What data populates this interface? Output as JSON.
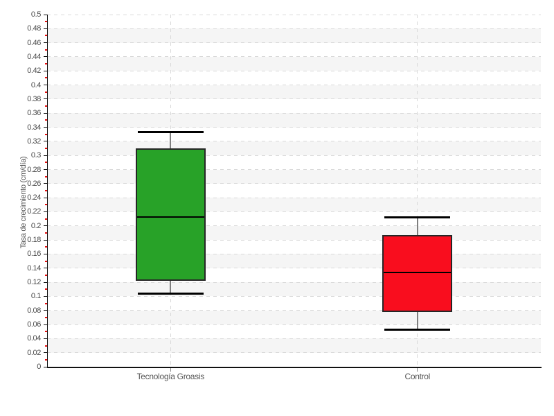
{
  "chart_data": {
    "type": "boxplot",
    "title": "",
    "xlabel": "",
    "ylabel": "Tasa de crecimiento (cm/día)",
    "ylim": [
      0,
      0.5
    ],
    "ytick_labels": [
      "0",
      "0.02",
      "0.04",
      "0.06",
      "0.08",
      "0.1",
      "0.12",
      "0.14",
      "0.16",
      "0.18",
      "0.2",
      "0.22",
      "0.24",
      "0.26",
      "0.28",
      "0.3",
      "0.32",
      "0.34",
      "0.36",
      "0.38",
      "0.4",
      "0.42",
      "0.44",
      "0.46",
      "0.48",
      "0.5"
    ],
    "minor_ticks_every": 0.01,
    "legend": "none",
    "grid": {
      "horizontal_gridlines": "dashed at every 0.02",
      "vertical_gridlines": "dashed at each category center",
      "alternating_row_bands": true
    },
    "categories": [
      "Tecnología Groasis",
      "Control"
    ],
    "series": [
      {
        "name": "Tecnología Groasis",
        "fill_color": "#28a228",
        "whisker_low": 0.104,
        "q1": 0.122,
        "median": 0.213,
        "q3": 0.31,
        "whisker_high": 0.333
      },
      {
        "name": "Control",
        "fill_color": "#f90d1e",
        "whisker_low": 0.053,
        "q1": 0.078,
        "median": 0.134,
        "q3": 0.187,
        "whisker_high": 0.212
      }
    ]
  },
  "colors": {
    "background": "#ffffff",
    "row_band": "#f5f5f5",
    "gridline": "#d9d9d9",
    "axis_line": "#111111",
    "major_tick": "#111111",
    "minor_tick": "#e81010",
    "tick_label": "#4a4a4a",
    "category_label": "#555555",
    "category_tick": "#888888",
    "box_border": "#262626",
    "median_line": "#000000",
    "whisker_stem": "#7f7f7f",
    "whisker_cap": "#000000"
  }
}
